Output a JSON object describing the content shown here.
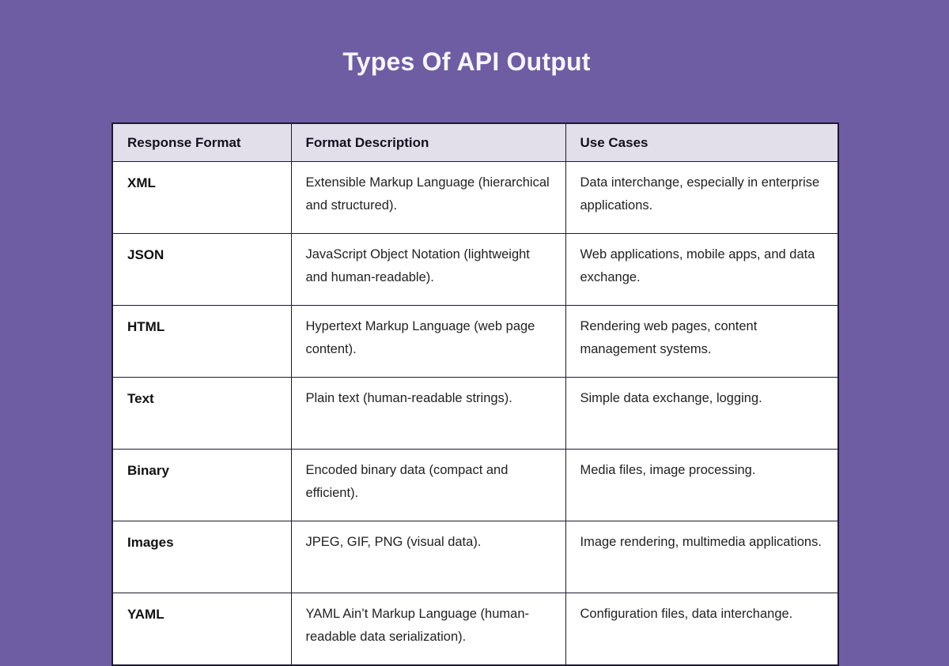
{
  "title": "Types Of API Output",
  "theme": {
    "background_color": "#6E5DA3",
    "header_bg_color": "#E2DFEA",
    "border_color": "#1E1B30",
    "cell_bg_color": "#FFFFFF",
    "title_color": "#F7F5FA"
  },
  "table": {
    "columns": {
      "format": "Response Format",
      "description": "Format Description",
      "use_cases": "Use Cases"
    },
    "rows": [
      {
        "format": "XML",
        "description": "Extensible Markup Language (hierarchical and structured).",
        "use_cases": "Data interchange, especially in enterprise applications."
      },
      {
        "format": "JSON",
        "description": "JavaScript Object Notation (lightweight and human-readable).",
        "use_cases": "Web applications, mobile apps, and data exchange."
      },
      {
        "format": "HTML",
        "description": "Hypertext Markup Language (web page content).",
        "use_cases": "Rendering web pages, content management systems."
      },
      {
        "format": "Text",
        "description": "Plain text (human-readable strings).",
        "use_cases": "Simple data exchange, logging."
      },
      {
        "format": "Binary",
        "description": "Encoded binary data (compact and efficient).",
        "use_cases": "Media files, image processing."
      },
      {
        "format": "Images",
        "description": "JPEG, GIF, PNG (visual data).",
        "use_cases": "Image rendering, multimedia applications."
      },
      {
        "format": "YAML",
        "description": "YAML Ain’t Markup Language (human-readable data serialization).",
        "use_cases": "Configuration files, data interchange."
      }
    ]
  }
}
